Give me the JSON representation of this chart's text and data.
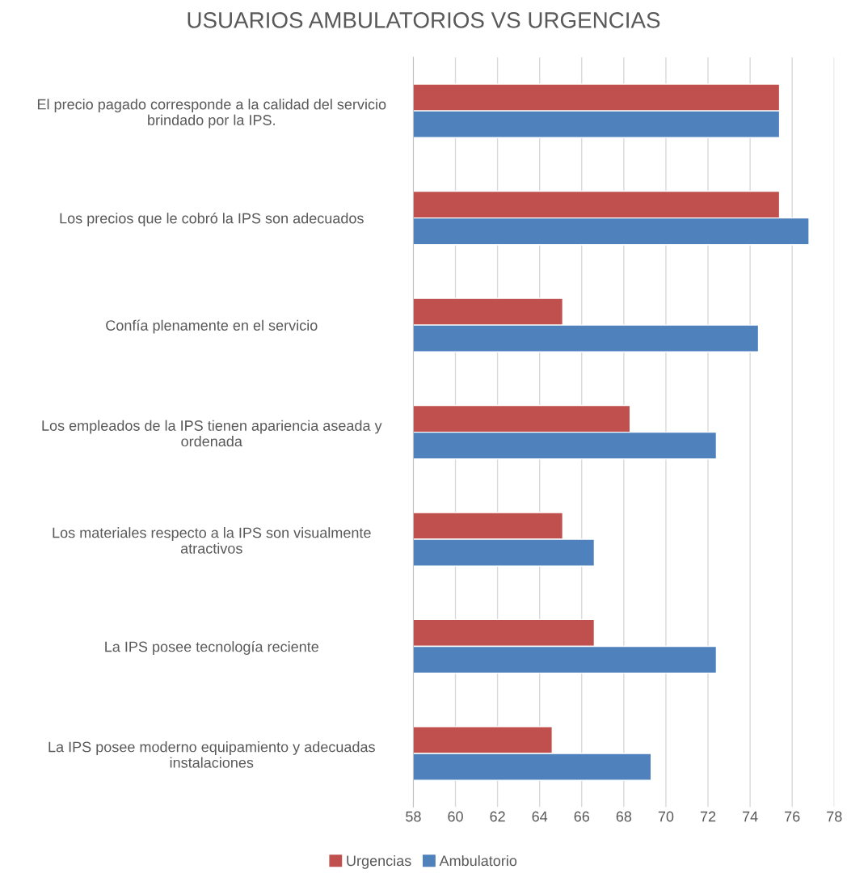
{
  "chart_data": {
    "type": "bar",
    "orientation": "horizontal",
    "title": "USUARIOS AMBULATORIOS VS URGENCIAS",
    "categories": [
      "El precio pagado corresponde a la calidad del servicio\nbrindado por la IPS.",
      "Los precios que le cobró la IPS son adecuados",
      "Confía plenamente en el servicio",
      "Los empleados de la IPS tienen apariencia aseada y\nordenada",
      "Los materiales respecto a la IPS son visualmente\natractivos",
      "La IPS posee tecnología reciente",
      "La IPS posee moderno equipamiento y adecuadas\ninstalaciones"
    ],
    "series": [
      {
        "name": "Urgencias",
        "color": "#c0504d",
        "values": [
          75.4,
          75.4,
          65.1,
          68.3,
          65.1,
          66.6,
          64.6
        ]
      },
      {
        "name": "Ambulatorio",
        "color": "#4f81bd",
        "values": [
          75.4,
          76.8,
          74.4,
          72.4,
          66.6,
          72.4,
          69.3
        ]
      }
    ],
    "xlim": [
      58,
      78
    ],
    "xticks": [
      58,
      60,
      62,
      64,
      66,
      68,
      70,
      72,
      74,
      76,
      78
    ],
    "grid": "x",
    "legend": "bottom"
  }
}
